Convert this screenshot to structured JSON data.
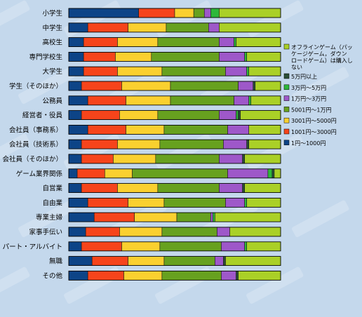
{
  "chart_data": {
    "type": "bar",
    "orientation": "horizontal",
    "stacked": true,
    "normalized_percent": true,
    "grid": false,
    "legend_position": "right",
    "categories": [
      "小学生",
      "中学生",
      "高校生",
      "専門学校生",
      "大学生",
      "学生（そのほか）",
      "公務員",
      "経営者・役員",
      "会社員（事務系）",
      "会社員（技術系）",
      "会社員（そのほか）",
      "ゲーム業界関係",
      "自営業",
      "自由業",
      "専業主婦",
      "家事手伝い",
      "パート・アルバイト",
      "無職",
      "その他"
    ],
    "series": [
      {
        "name": "1円〜1000円",
        "color": "#0d4487",
        "values": [
          33,
          9,
          7,
          7,
          7,
          6,
          9,
          6,
          9,
          6,
          6,
          4,
          6,
          9,
          12,
          8,
          6,
          11,
          9
        ]
      },
      {
        "name": "1001円〜3000円",
        "color": "#f6441b",
        "values": [
          17,
          19,
          16,
          15,
          16,
          19,
          18,
          18,
          18,
          17,
          15,
          13,
          17,
          19,
          19,
          16,
          19,
          17,
          17
        ]
      },
      {
        "name": "3001円〜5000円",
        "color": "#fad02f",
        "values": [
          9,
          18,
          19,
          17,
          21,
          23,
          21,
          18,
          18,
          20,
          20,
          13,
          19,
          17,
          20,
          20,
          18,
          17,
          18
        ]
      },
      {
        "name": "5001円〜1万円",
        "color": "#67a11f",
        "values": [
          5,
          20,
          29,
          32,
          30,
          32,
          30,
          29,
          30,
          30,
          30,
          45,
          29,
          29,
          16,
          26,
          29,
          24,
          28
        ]
      },
      {
        "name": "1万円〜3万円",
        "color": "#9e58c9",
        "values": [
          3,
          5,
          7,
          12,
          10,
          7,
          7,
          8,
          10,
          11,
          11,
          19,
          11,
          9,
          1,
          6,
          11,
          4,
          7
        ]
      },
      {
        "name": "3万円〜5万円",
        "color": "#2eb83a",
        "values": [
          4,
          0,
          1,
          1,
          1,
          0,
          1,
          1,
          0,
          0,
          0,
          2,
          0,
          1,
          1,
          0,
          1,
          0,
          0
        ]
      },
      {
        "name": "5万円以上",
        "color": "#2a4e37",
        "values": [
          0,
          0,
          0,
          0,
          0,
          1,
          0,
          1,
          0,
          1,
          1,
          1,
          1,
          0,
          0,
          0,
          0,
          1,
          1
        ]
      },
      {
        "name": "オフラインゲーム（パッケージゲーム，ダウンロードゲーム）は購入しない",
        "color": "#aad027",
        "values": [
          29,
          29,
          21,
          16,
          15,
          12,
          14,
          19,
          15,
          15,
          17,
          3,
          17,
          16,
          31,
          24,
          16,
          26,
          20
        ]
      }
    ],
    "legend_order": [
      7,
      6,
      5,
      4,
      3,
      2,
      1,
      0
    ]
  }
}
